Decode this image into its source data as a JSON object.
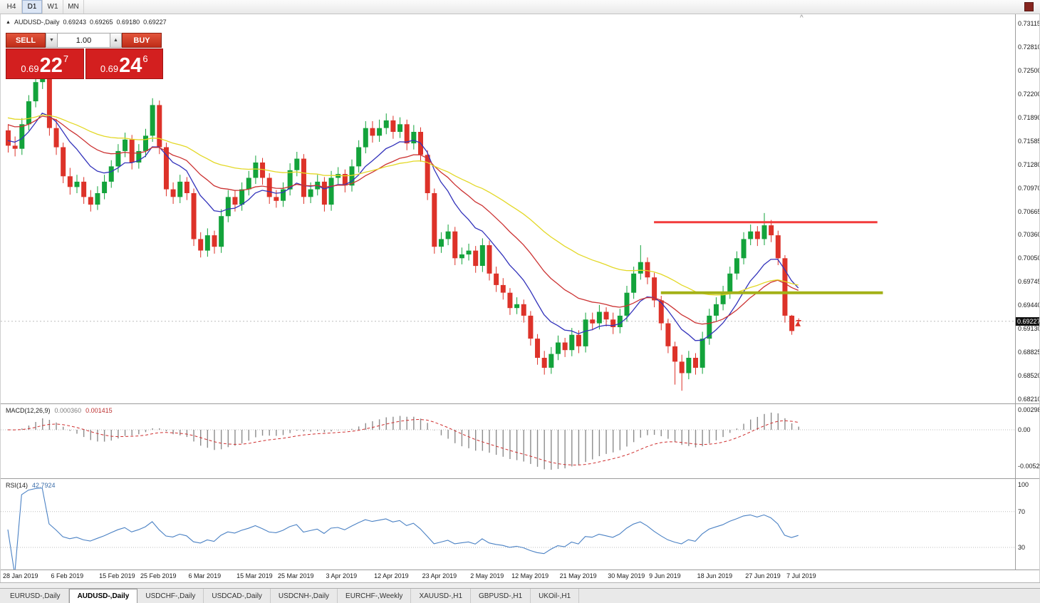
{
  "toolbar": {
    "timeframes": [
      {
        "label": "H4",
        "active": false
      },
      {
        "label": "D1",
        "active": true
      },
      {
        "label": "W1",
        "active": false
      },
      {
        "label": "MN",
        "active": false
      }
    ]
  },
  "chart": {
    "title": "AUDUSD-,Daily",
    "open": "0.69243",
    "high": "0.69265",
    "low": "0.69180",
    "close": "0.69227",
    "bid": 0.69227,
    "bid_label": "0.69227",
    "colors": {
      "bull": "#13a33b",
      "bear": "#dd3229",
      "ma_fast": "#3333bb",
      "ma_mid": "#cc3333",
      "ma_slow": "#e3d826",
      "rsi": "#4a81c4",
      "macd_hist": "#8c8c8c",
      "macd_signal": "#cf2f2f"
    }
  },
  "trade_panel": {
    "sell_label": "SELL",
    "buy_label": "BUY",
    "volume": "1.00",
    "sell_price": {
      "prefix": "0.69",
      "big": "22",
      "sup": "7"
    },
    "buy_price": {
      "prefix": "0.69",
      "big": "24",
      "sup": "6"
    }
  },
  "macd_panel": {
    "title": "MACD(12,26,9)",
    "value_main": "0.000360",
    "value_signal": "0.001415",
    "axis_labels": [
      {
        "text": "0.00298",
        "value": 0.00298
      },
      {
        "text": "0.00",
        "value": 0
      },
      {
        "text": "-0.00525",
        "value": -0.00525
      }
    ]
  },
  "rsi_panel": {
    "title": "RSI(14)",
    "value": "42.7924",
    "axis_labels": [
      {
        "text": "100",
        "value": 100
      },
      {
        "text": "70",
        "value": 70
      },
      {
        "text": "30",
        "value": 30
      }
    ],
    "levels": [
      70,
      30
    ]
  },
  "bottom_tabs": [
    {
      "label": "EURUSD-,Daily",
      "active": false
    },
    {
      "label": "AUDUSD-,Daily",
      "active": true
    },
    {
      "label": "USDCHF-,Daily",
      "active": false
    },
    {
      "label": "USDCAD-,Daily",
      "active": false
    },
    {
      "label": "USDCNH-,Daily",
      "active": false
    },
    {
      "label": "EURCHF-,Weekly",
      "active": false
    },
    {
      "label": "XAUUSD-,H1",
      "active": false
    },
    {
      "label": "GBPUSD-,H1",
      "active": false
    },
    {
      "label": "UKOil-,H1",
      "active": false
    }
  ],
  "chart_data": {
    "type": "candlestick",
    "symbol": "AUDUSD",
    "timeframe": "Daily",
    "ylim": [
      0.6821,
      0.73115
    ],
    "y_ticks": [
      "0.73115",
      "0.72810",
      "0.72500",
      "0.72200",
      "0.71890",
      "0.71585",
      "0.71280",
      "0.70970",
      "0.70665",
      "0.70360",
      "0.70050",
      "0.69745",
      "0.69440",
      "0.69130",
      "0.68825",
      "0.68520",
      "0.68210"
    ],
    "date_labels": [
      {
        "label": "28 Jan 2019",
        "idx": 0
      },
      {
        "label": "6 Feb 2019",
        "idx": 7
      },
      {
        "label": "15 Feb 2019",
        "idx": 14
      },
      {
        "label": "25 Feb 2019",
        "idx": 20
      },
      {
        "label": "6 Mar 2019",
        "idx": 27
      },
      {
        "label": "15 Mar 2019",
        "idx": 34
      },
      {
        "label": "25 Mar 2019",
        "idx": 40
      },
      {
        "label": "3 Apr 2019",
        "idx": 47
      },
      {
        "label": "12 Apr 2019",
        "idx": 54
      },
      {
        "label": "23 Apr 2019",
        "idx": 61
      },
      {
        "label": "2 May 2019",
        "idx": 68
      },
      {
        "label": "12 May 2019",
        "idx": 74
      },
      {
        "label": "21 May 2019",
        "idx": 81
      },
      {
        "label": "30 May 2019",
        "idx": 88
      },
      {
        "label": "9 Jun 2019",
        "idx": 94
      },
      {
        "label": "18 Jun 2019",
        "idx": 101
      },
      {
        "label": "27 Jun 2019",
        "idx": 108
      },
      {
        "label": "7 Jul 2019",
        "idx": 114
      }
    ],
    "levels": [
      {
        "name": "resistance-level",
        "price": 0.7052,
        "color": "#f23b3b",
        "from_idx": 94,
        "to_idx": 126.5,
        "width": 3
      },
      {
        "name": "support-level",
        "price": 0.696,
        "color": "#a3b117",
        "from_idx": 95,
        "to_idx": 127.3,
        "width": 4
      }
    ],
    "moving_averages": [
      {
        "name": "fast",
        "period": 10,
        "color": "#3333bb",
        "seed": 0.716
      },
      {
        "name": "mid",
        "period": 22,
        "color": "#cc3333",
        "seed": 0.7182
      },
      {
        "name": "slow",
        "period": 45,
        "color": "#e3d826",
        "seed": 0.719
      }
    ],
    "indicators": [
      {
        "name": "MACD",
        "params": [
          12,
          26,
          9
        ],
        "current_main": 0.00036,
        "current_signal": 0.001415
      },
      {
        "name": "RSI",
        "params": [
          14
        ],
        "current": 42.7924
      }
    ],
    "ohlc": [
      [
        0.7172,
        0.718,
        0.7143,
        0.7152
      ],
      [
        0.7152,
        0.7164,
        0.7138,
        0.7148
      ],
      [
        0.7148,
        0.7188,
        0.714,
        0.718
      ],
      [
        0.718,
        0.7218,
        0.7172,
        0.721
      ],
      [
        0.721,
        0.7244,
        0.7202,
        0.7235
      ],
      [
        0.7235,
        0.7258,
        0.7226,
        0.7252
      ],
      [
        0.7252,
        0.7256,
        0.7165,
        0.7175
      ],
      [
        0.7175,
        0.7187,
        0.714,
        0.715
      ],
      [
        0.715,
        0.7156,
        0.7103,
        0.7112
      ],
      [
        0.7112,
        0.7123,
        0.7088,
        0.7098
      ],
      [
        0.7098,
        0.7114,
        0.709,
        0.7105
      ],
      [
        0.7105,
        0.7111,
        0.7076,
        0.7085
      ],
      [
        0.7085,
        0.7094,
        0.7066,
        0.7075
      ],
      [
        0.7075,
        0.7099,
        0.7068,
        0.709
      ],
      [
        0.709,
        0.7114,
        0.7082,
        0.7105
      ],
      [
        0.7105,
        0.7133,
        0.7097,
        0.7125
      ],
      [
        0.7125,
        0.7154,
        0.7117,
        0.7145
      ],
      [
        0.7145,
        0.7169,
        0.7137,
        0.716
      ],
      [
        0.716,
        0.7166,
        0.7121,
        0.713
      ],
      [
        0.713,
        0.7154,
        0.7122,
        0.7145
      ],
      [
        0.7145,
        0.7174,
        0.7137,
        0.7165
      ],
      [
        0.7165,
        0.7214,
        0.7157,
        0.7205
      ],
      [
        0.7205,
        0.7211,
        0.7141,
        0.715
      ],
      [
        0.715,
        0.7156,
        0.7086,
        0.7095
      ],
      [
        0.7095,
        0.7104,
        0.7076,
        0.7085
      ],
      [
        0.7085,
        0.7114,
        0.7077,
        0.7105
      ],
      [
        0.7105,
        0.7111,
        0.7081,
        0.709
      ],
      [
        0.709,
        0.7096,
        0.7021,
        0.703
      ],
      [
        0.703,
        0.7039,
        0.7006,
        0.7015
      ],
      [
        0.7015,
        0.7044,
        0.7007,
        0.7035
      ],
      [
        0.7035,
        0.7041,
        0.7011,
        0.702
      ],
      [
        0.702,
        0.7069,
        0.7012,
        0.706
      ],
      [
        0.706,
        0.7094,
        0.7052,
        0.7085
      ],
      [
        0.7085,
        0.7094,
        0.7066,
        0.7075
      ],
      [
        0.7075,
        0.7104,
        0.7067,
        0.7095
      ],
      [
        0.7095,
        0.7119,
        0.7087,
        0.711
      ],
      [
        0.711,
        0.7139,
        0.7102,
        0.713
      ],
      [
        0.713,
        0.7136,
        0.7101,
        0.711
      ],
      [
        0.711,
        0.7116,
        0.7076,
        0.7085
      ],
      [
        0.7085,
        0.7094,
        0.7071,
        0.708
      ],
      [
        0.708,
        0.7104,
        0.7072,
        0.7095
      ],
      [
        0.7095,
        0.7129,
        0.7087,
        0.712
      ],
      [
        0.712,
        0.7144,
        0.7112,
        0.7135
      ],
      [
        0.7135,
        0.7141,
        0.7076,
        0.7085
      ],
      [
        0.7085,
        0.7104,
        0.7077,
        0.7095
      ],
      [
        0.7095,
        0.7114,
        0.7087,
        0.7105
      ],
      [
        0.7105,
        0.7111,
        0.7066,
        0.7075
      ],
      [
        0.7075,
        0.7119,
        0.7067,
        0.711
      ],
      [
        0.711,
        0.7124,
        0.7102,
        0.7115
      ],
      [
        0.7115,
        0.7121,
        0.7091,
        0.71
      ],
      [
        0.71,
        0.7134,
        0.7092,
        0.7125
      ],
      [
        0.7125,
        0.7159,
        0.7117,
        0.715
      ],
      [
        0.715,
        0.7184,
        0.7142,
        0.7175
      ],
      [
        0.7175,
        0.7184,
        0.7156,
        0.7165
      ],
      [
        0.7165,
        0.7186,
        0.7157,
        0.7175
      ],
      [
        0.7175,
        0.7194,
        0.7167,
        0.7185
      ],
      [
        0.7185,
        0.7191,
        0.7161,
        0.717
      ],
      [
        0.717,
        0.7189,
        0.7162,
        0.718
      ],
      [
        0.718,
        0.7186,
        0.7146,
        0.7155
      ],
      [
        0.7155,
        0.7179,
        0.7147,
        0.717
      ],
      [
        0.717,
        0.7176,
        0.7131,
        0.714
      ],
      [
        0.714,
        0.7146,
        0.7081,
        0.709
      ],
      [
        0.709,
        0.7096,
        0.7011,
        0.702
      ],
      [
        0.702,
        0.7039,
        0.7012,
        0.703
      ],
      [
        0.703,
        0.7049,
        0.7022,
        0.704
      ],
      [
        0.704,
        0.7046,
        0.6996,
        0.7005
      ],
      [
        0.7005,
        0.7019,
        0.6997,
        0.701
      ],
      [
        0.701,
        0.7024,
        0.7002,
        0.7015
      ],
      [
        0.7015,
        0.7021,
        0.6986,
        0.6995
      ],
      [
        0.6995,
        0.7031,
        0.6987,
        0.7022
      ],
      [
        0.7022,
        0.7028,
        0.6976,
        0.6985
      ],
      [
        0.6985,
        0.6994,
        0.6961,
        0.697
      ],
      [
        0.697,
        0.6979,
        0.6951,
        0.696
      ],
      [
        0.696,
        0.6966,
        0.6931,
        0.694
      ],
      [
        0.694,
        0.6954,
        0.6932,
        0.6945
      ],
      [
        0.6945,
        0.6951,
        0.6921,
        0.693
      ],
      [
        0.693,
        0.6936,
        0.6891,
        0.69
      ],
      [
        0.69,
        0.6906,
        0.6866,
        0.6875
      ],
      [
        0.6875,
        0.6884,
        0.6853,
        0.6862
      ],
      [
        0.6862,
        0.6889,
        0.6854,
        0.688
      ],
      [
        0.688,
        0.6904,
        0.6872,
        0.6895
      ],
      [
        0.6895,
        0.6901,
        0.6876,
        0.6885
      ],
      [
        0.6885,
        0.6914,
        0.6877,
        0.6905
      ],
      [
        0.6905,
        0.6911,
        0.6881,
        0.689
      ],
      [
        0.689,
        0.6934,
        0.6882,
        0.6925
      ],
      [
        0.6925,
        0.6934,
        0.6911,
        0.692
      ],
      [
        0.692,
        0.6944,
        0.6912,
        0.6935
      ],
      [
        0.6935,
        0.6941,
        0.6916,
        0.6925
      ],
      [
        0.6925,
        0.6934,
        0.6906,
        0.6915
      ],
      [
        0.6915,
        0.6939,
        0.6907,
        0.693
      ],
      [
        0.693,
        0.6969,
        0.6922,
        0.696
      ],
      [
        0.696,
        0.6994,
        0.6952,
        0.6985
      ],
      [
        0.6985,
        0.7022,
        0.6977,
        0.7
      ],
      [
        0.7,
        0.7006,
        0.6971,
        0.698
      ],
      [
        0.698,
        0.6986,
        0.6941,
        0.695
      ],
      [
        0.695,
        0.6956,
        0.6911,
        0.692
      ],
      [
        0.692,
        0.6926,
        0.6881,
        0.689
      ],
      [
        0.689,
        0.6896,
        0.684,
        0.687
      ],
      [
        0.687,
        0.6879,
        0.6832,
        0.6855
      ],
      [
        0.6855,
        0.6884,
        0.6847,
        0.6875
      ],
      [
        0.6875,
        0.6881,
        0.6853,
        0.6862
      ],
      [
        0.6862,
        0.6909,
        0.6854,
        0.69
      ],
      [
        0.69,
        0.6939,
        0.6892,
        0.693
      ],
      [
        0.693,
        0.6954,
        0.6922,
        0.6945
      ],
      [
        0.6945,
        0.6969,
        0.6937,
        0.696
      ],
      [
        0.696,
        0.6994,
        0.6952,
        0.6985
      ],
      [
        0.6985,
        0.7014,
        0.6977,
        0.7005
      ],
      [
        0.7005,
        0.7039,
        0.6997,
        0.703
      ],
      [
        0.703,
        0.7049,
        0.7022,
        0.704
      ],
      [
        0.704,
        0.7047,
        0.7021,
        0.703
      ],
      [
        0.703,
        0.7064,
        0.7022,
        0.7048
      ],
      [
        0.7048,
        0.7055,
        0.7026,
        0.7035
      ],
      [
        0.7035,
        0.7041,
        0.6996,
        0.7005
      ],
      [
        0.7005,
        0.7009,
        0.6921,
        0.693
      ],
      [
        0.693,
        0.6931,
        0.6905,
        0.691
      ],
      [
        0.69243,
        0.69265,
        0.6918,
        0.69227
      ]
    ]
  }
}
